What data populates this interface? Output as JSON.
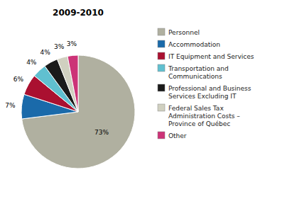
{
  "chart_data": {
    "type": "pie",
    "title": "2009-2010",
    "categories": [
      "Personnel",
      "Accommodation",
      "IT Equipment and Services",
      "Transportation and\nCommunications",
      "Professional and Business\nServices Excluding IT",
      "Federal Sales Tax\nAdministration Costs –\nProvince of Québec",
      "Other"
    ],
    "values": [
      73,
      7,
      6,
      4,
      4,
      3,
      3
    ],
    "value_labels": [
      "73%",
      "7%",
      "6%",
      "4%",
      "4%",
      "3%",
      "3%"
    ],
    "colors": [
      "#b0b0a0",
      "#1a6aaa",
      "#aa1030",
      "#60c0d0",
      "#1a1a1a",
      "#d0d0c0",
      "#cc3377"
    ],
    "data_labels": true,
    "legend": "right"
  }
}
